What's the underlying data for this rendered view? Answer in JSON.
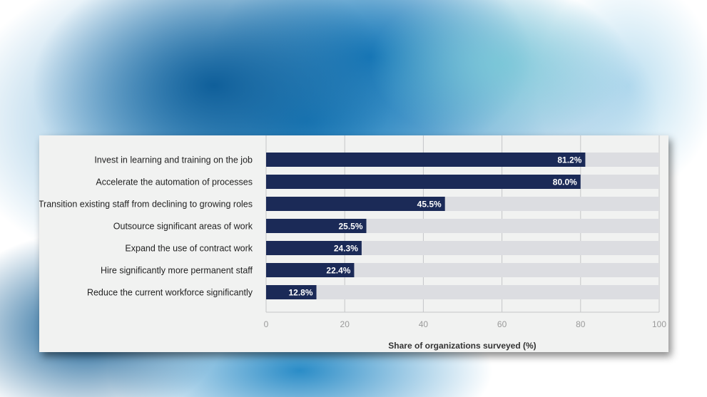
{
  "chart_data": {
    "type": "bar",
    "orientation": "horizontal",
    "categories": [
      "Invest in learning and training on the job",
      "Accelerate the automation of processes",
      "Transition existing staff from declining to growing roles",
      "Outsource significant areas of work",
      "Expand the use of contract work",
      "Hire significantly more permanent staff",
      "Reduce the current workforce significantly"
    ],
    "values": [
      81.2,
      80.0,
      45.5,
      25.5,
      24.3,
      22.4,
      12.8
    ],
    "value_labels": [
      "81.2%",
      "80.0%",
      "45.5%",
      "25.5%",
      "24.3%",
      "22.4%",
      "12.8%"
    ],
    "xlim": [
      0,
      100
    ],
    "xticks": [
      0,
      20,
      40,
      60,
      80,
      100
    ],
    "xtick_labels": [
      "0",
      "20",
      "40",
      "60",
      "80",
      "100"
    ],
    "xlabel": "Share of organizations surveyed (%)",
    "ylabel": "",
    "title": "",
    "grid": true,
    "colors": {
      "bar": "#1b2a57",
      "track": "#dcdde1",
      "plot_bg": "#f1f2f1",
      "grid": "#c5c6c8"
    }
  }
}
